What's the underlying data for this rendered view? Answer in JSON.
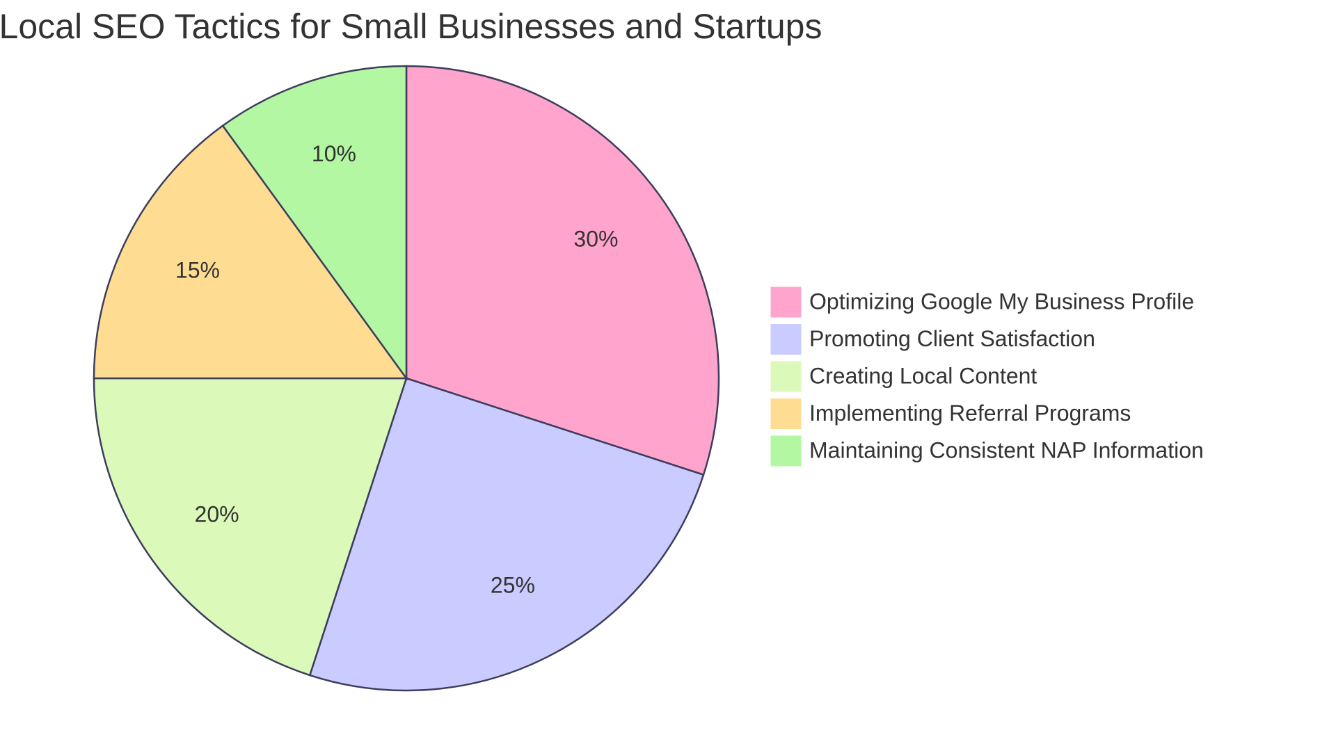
{
  "chart_data": {
    "type": "pie",
    "title": "Local SEO Tactics for Small Businesses and Startups",
    "categories": [
      "Optimizing Google My Business Profile",
      "Promoting Client Satisfaction",
      "Creating Local Content",
      "Implementing Referral Programs",
      "Maintaining Consistent NAP Information"
    ],
    "values": [
      30,
      25,
      20,
      15,
      10
    ],
    "value_labels": [
      "30%",
      "25%",
      "20%",
      "15%",
      "10%"
    ],
    "colors": [
      "#ffa4cd",
      "#cacbff",
      "#dbf9b8",
      "#fedd93",
      "#b3f7a3"
    ],
    "legend": "right"
  }
}
